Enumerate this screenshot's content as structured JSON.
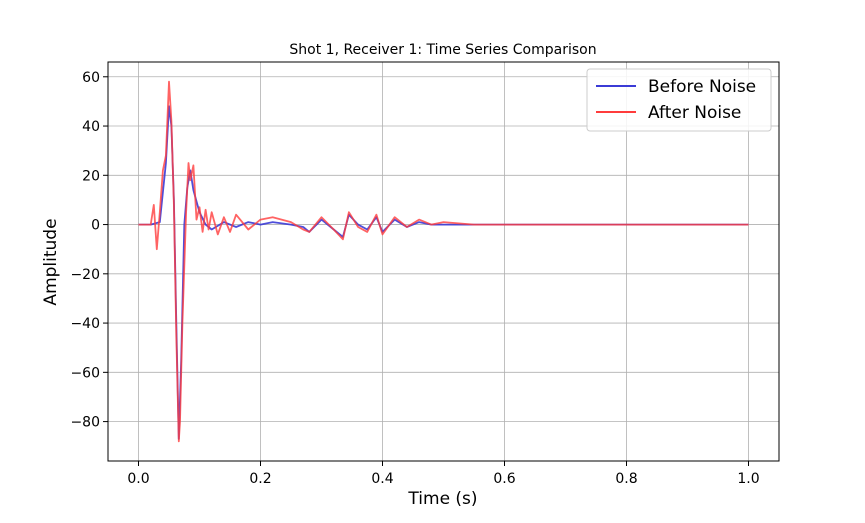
{
  "chart_data": {
    "type": "line",
    "title": "Shot 1, Receiver 1: Time Series Comparison",
    "xlabel": "Time (s)",
    "ylabel": "Amplitude",
    "xlim": [
      -0.05,
      1.05
    ],
    "ylim": [
      -96,
      66
    ],
    "xticks": [
      0.0,
      0.2,
      0.4,
      0.6,
      0.8,
      1.0
    ],
    "xtick_labels": [
      "0.0",
      "0.2",
      "0.4",
      "0.6",
      "0.8",
      "1.0"
    ],
    "yticks": [
      60,
      40,
      20,
      0,
      -20,
      -40,
      -60,
      -80
    ],
    "ytick_labels": [
      "60",
      "40",
      "20",
      "0",
      "−20",
      "−40",
      "−60",
      "−80"
    ],
    "grid": true,
    "legend_position": "top-right",
    "series": [
      {
        "name": "Before Noise",
        "color": "#3b3bd6",
        "x": [
          0.0,
          0.02,
          0.035,
          0.045,
          0.05,
          0.054,
          0.058,
          0.062,
          0.066,
          0.07,
          0.075,
          0.08,
          0.085,
          0.09,
          0.1,
          0.11,
          0.12,
          0.14,
          0.16,
          0.18,
          0.2,
          0.22,
          0.25,
          0.27,
          0.28,
          0.3,
          0.32,
          0.335,
          0.345,
          0.36,
          0.375,
          0.39,
          0.4,
          0.42,
          0.44,
          0.46,
          0.48,
          0.5,
          0.55,
          0.6,
          0.7,
          0.8,
          0.9,
          1.0
        ],
        "y": [
          0,
          0,
          1,
          25,
          48,
          40,
          10,
          -40,
          -87,
          -55,
          0,
          15,
          22,
          14,
          5,
          0,
          -2,
          1,
          -1,
          1,
          0,
          1,
          0,
          -1,
          -3,
          2,
          -2,
          -5,
          4,
          0,
          -2,
          3,
          -3,
          2,
          -1,
          1,
          0,
          0,
          0,
          0,
          0,
          0,
          0,
          0
        ]
      },
      {
        "name": "After Noise",
        "color": "#ff3c3c",
        "x": [
          0.0,
          0.02,
          0.025,
          0.03,
          0.035,
          0.04,
          0.045,
          0.05,
          0.054,
          0.058,
          0.062,
          0.066,
          0.068,
          0.072,
          0.078,
          0.082,
          0.085,
          0.09,
          0.095,
          0.1,
          0.105,
          0.11,
          0.115,
          0.12,
          0.13,
          0.14,
          0.15,
          0.16,
          0.18,
          0.2,
          0.22,
          0.25,
          0.27,
          0.28,
          0.3,
          0.32,
          0.335,
          0.345,
          0.36,
          0.375,
          0.39,
          0.4,
          0.42,
          0.44,
          0.46,
          0.48,
          0.5,
          0.55,
          0.6,
          0.7,
          0.8,
          0.9,
          1.0
        ],
        "y": [
          0,
          0,
          8,
          -10,
          5,
          22,
          28,
          58,
          42,
          8,
          -45,
          -88,
          -80,
          -40,
          5,
          25,
          18,
          24,
          2,
          7,
          -3,
          6,
          -2,
          5,
          -4,
          3,
          -3,
          4,
          -2,
          2,
          3,
          1,
          -2,
          -3,
          3,
          -2,
          -6,
          5,
          -1,
          -3,
          4,
          -4,
          3,
          -1,
          2,
          0,
          1,
          0,
          0,
          0,
          0,
          0,
          0
        ]
      }
    ]
  }
}
